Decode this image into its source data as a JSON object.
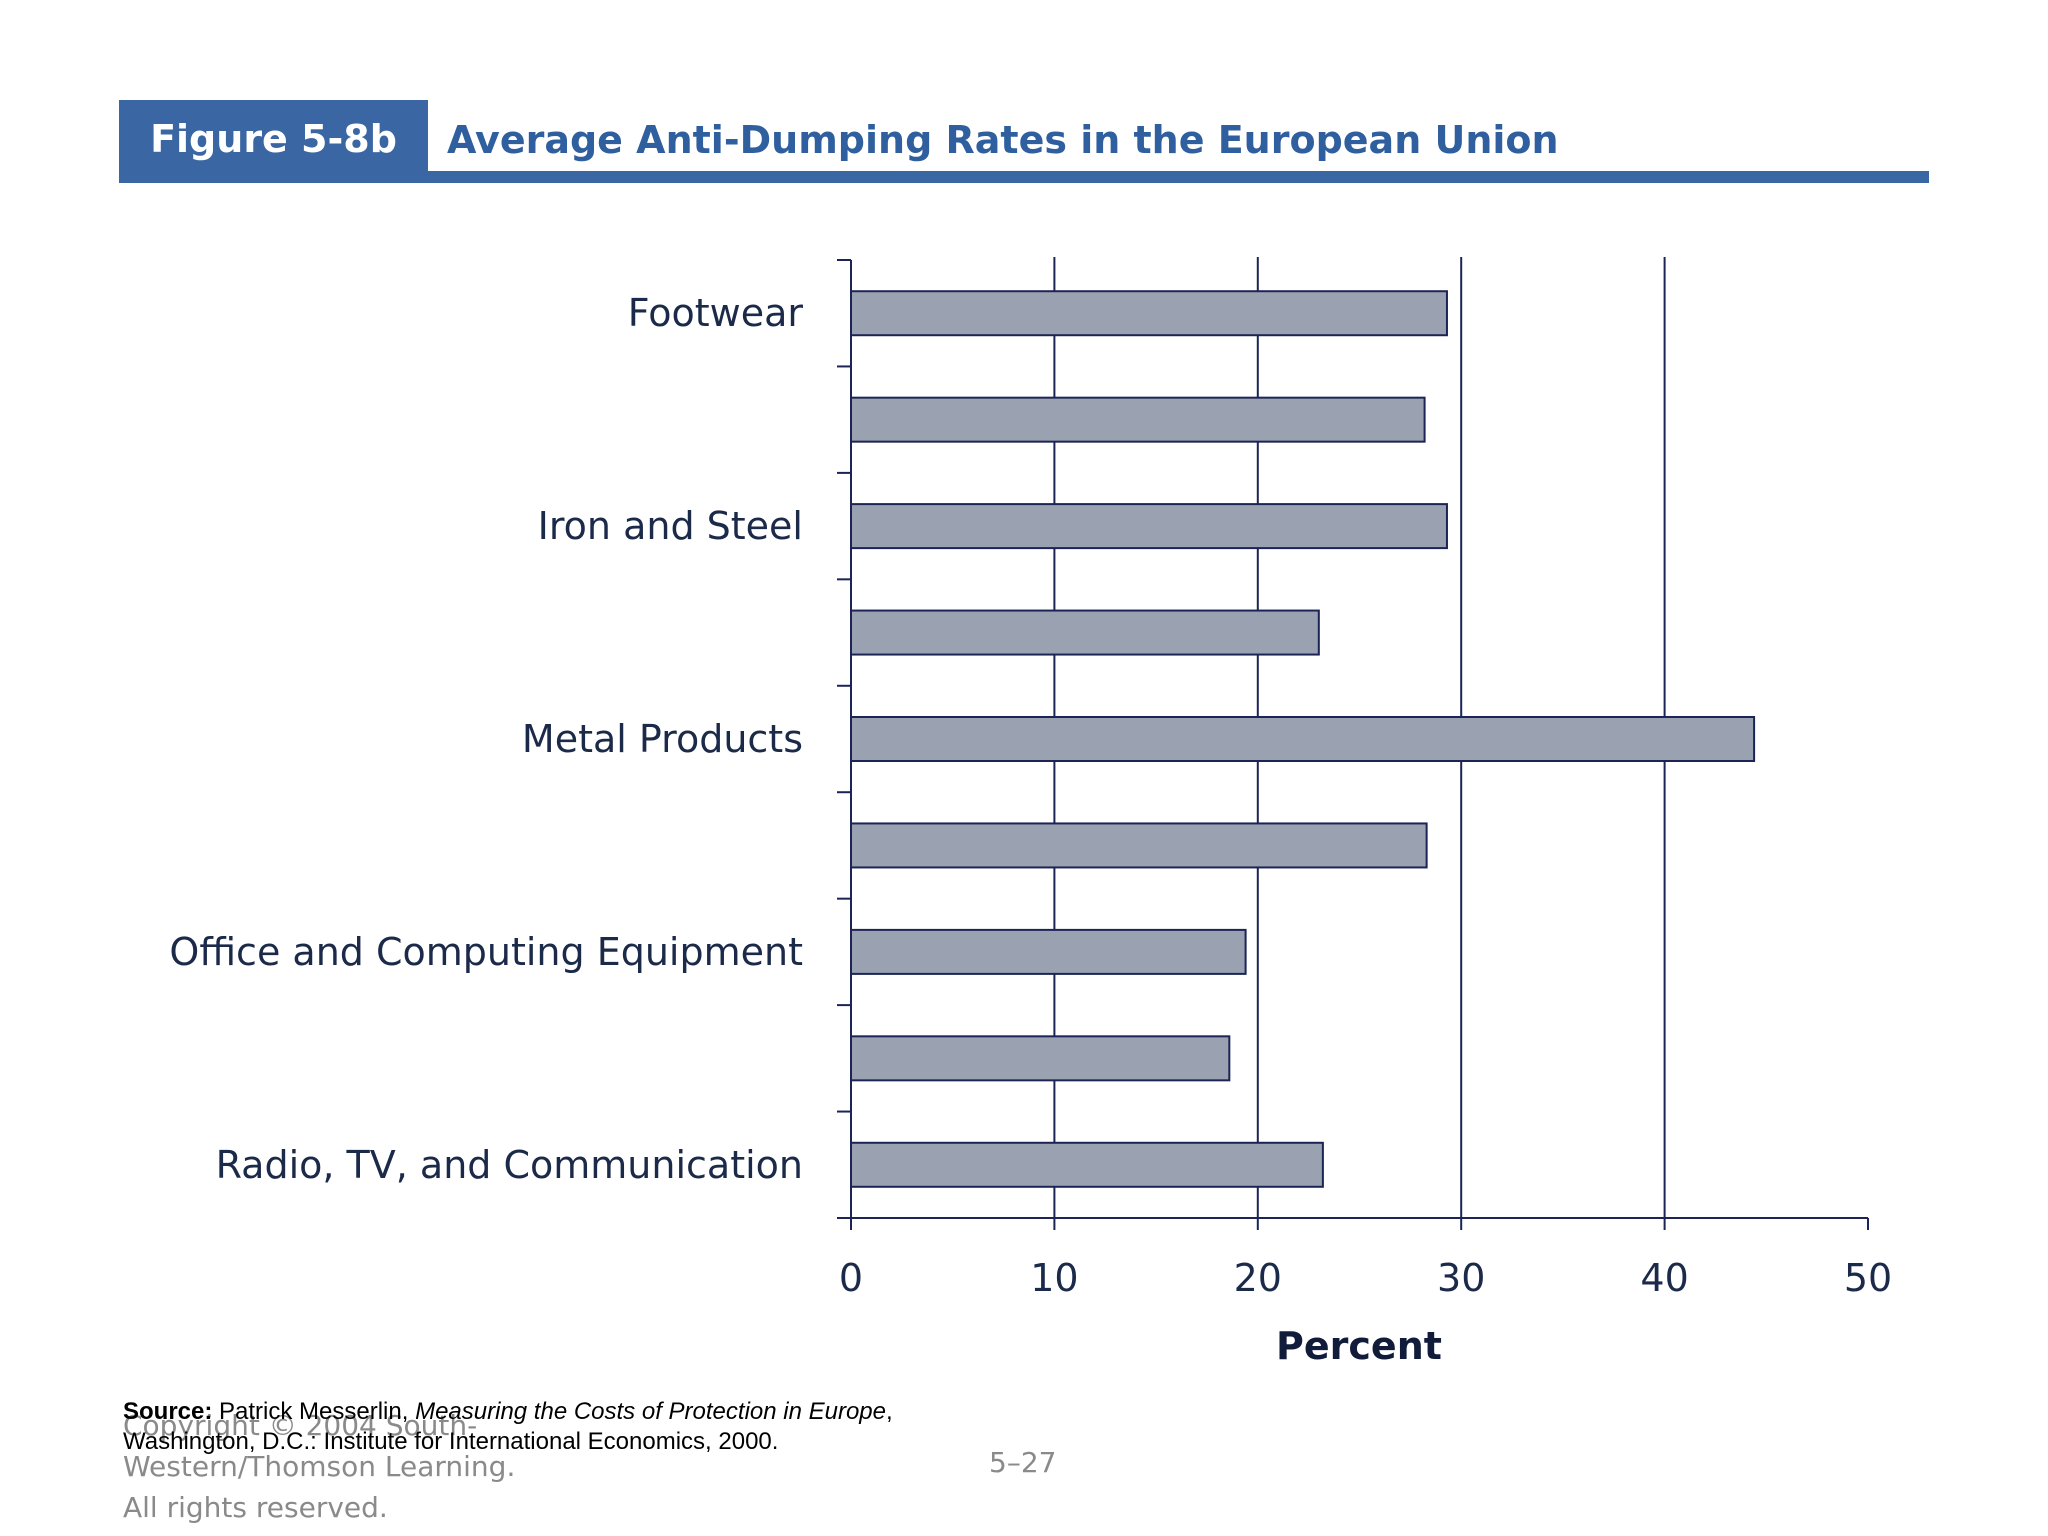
{
  "figure": {
    "tag": "Figure 5-8b",
    "title": "Average Anti-Dumping Rates in the European Union"
  },
  "chart_data": {
    "type": "bar",
    "orientation": "horizontal",
    "categories": [
      "Footwear",
      "",
      "Iron and Steel",
      "",
      "Metal Products",
      "",
      "Office and Computing Equipment",
      "",
      "Radio, TV, and Communication"
    ],
    "values": [
      29.3,
      28.2,
      29.3,
      23.0,
      44.4,
      28.3,
      19.4,
      18.6,
      23.2
    ],
    "xlabel": "Percent",
    "ylabel": "",
    "xlim": [
      0,
      50
    ],
    "xticks": [
      "0",
      "10",
      "20",
      "30",
      "40",
      "50"
    ],
    "grid": "vertical",
    "bar_color": "#9aa1b0",
    "bar_edge_color": "#1c2456",
    "axis_color": "#1c2456"
  },
  "source": {
    "label": "Source:",
    "author": "Patrick Messerlin, ",
    "book": "Measuring the Costs of Protection in Europe",
    "after_book": ",",
    "line2": "Washington, D.C.: Institute for International Economics, 2000."
  },
  "footer": {
    "copyright_line1": "Copyright © 2004 South-",
    "copyright_line2": "Western/Thomson Learning.",
    "copyright_line3": "All rights reserved.",
    "slide_number": "5–27"
  }
}
